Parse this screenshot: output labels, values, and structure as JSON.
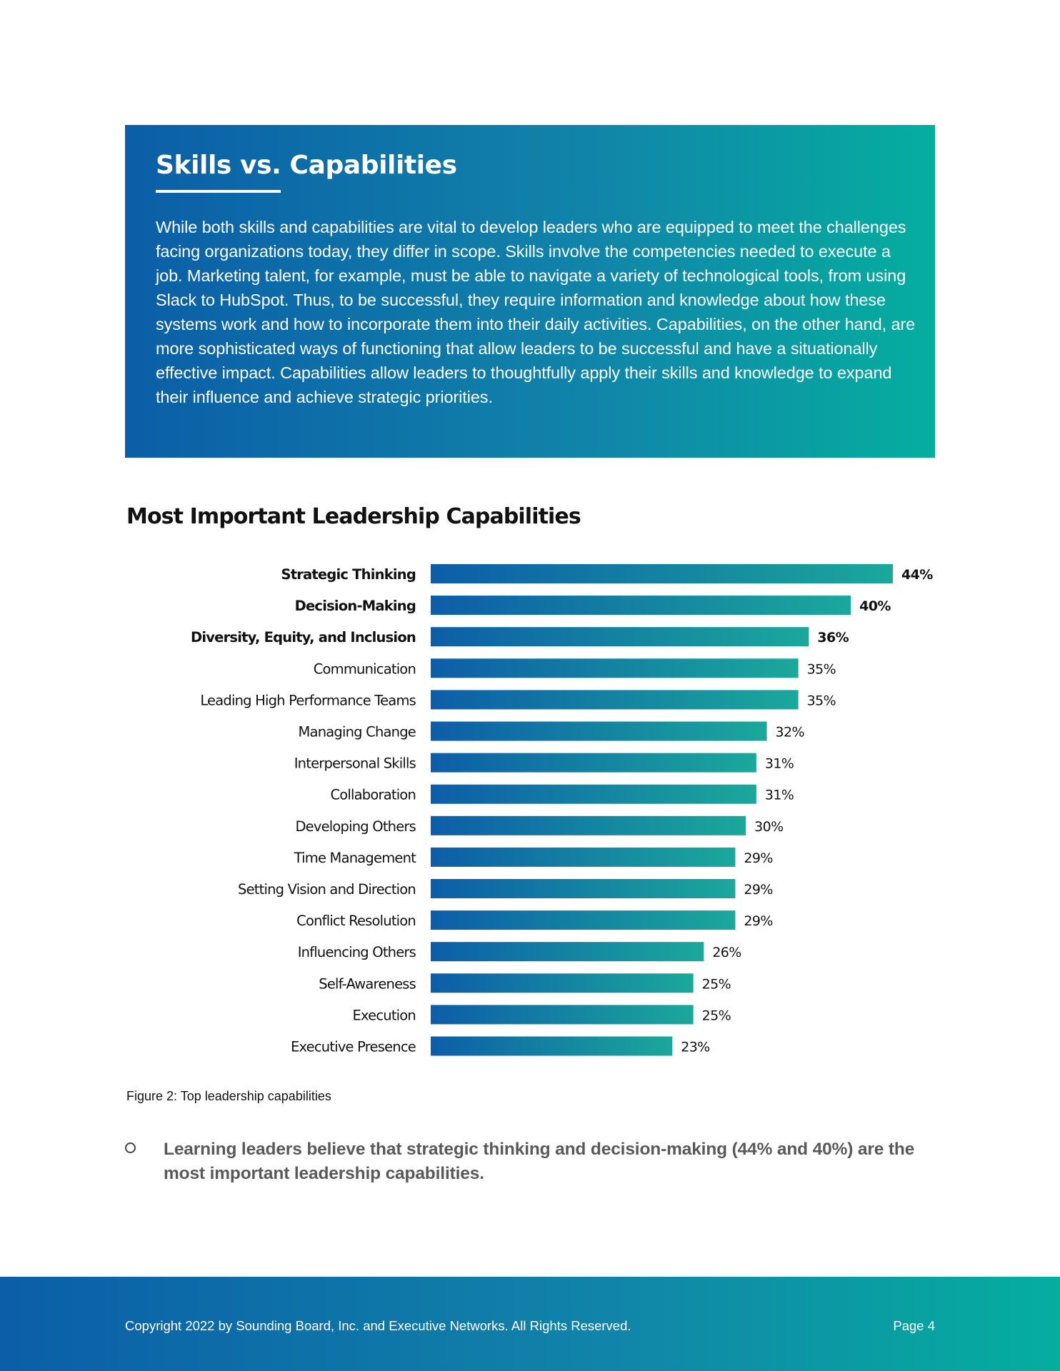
{
  "callout": {
    "title": "Skills vs. Capabilities",
    "body": "While both skills and capabilities are vital to develop leaders who are equipped to meet the challenges facing organizations today, they differ in scope. Skills involve the competencies needed to execute a job. Marketing talent, for example, must be able to navigate a variety of technological tools, from using Slack to HubSpot. Thus, to be successful, they require information and knowledge about how these systems work and how to incorporate them into their daily activities. Capabilities, on the other hand, are more sophisticated ways of functioning that allow leaders to be successful and have a situationally effective impact. Capabilities allow leaders to thoughtfully apply their skills and knowledge to expand their influence and achieve strategic priorities."
  },
  "chart_data": {
    "type": "bar",
    "orientation": "horizontal",
    "title": "Most Important Leadership Capabilities",
    "categories": [
      "Strategic Thinking",
      "Decision-Making",
      "Diversity, Equity, and Inclusion",
      "Communication",
      "Leading High Performance Teams",
      "Managing Change",
      "Interpersonal Skills",
      "Collaboration",
      "Developing Others",
      "Time Management",
      "Setting Vision and Direction",
      "Conflict Resolution",
      "Influencing Others",
      "Self-Awareness",
      "Execution",
      "Executive Presence"
    ],
    "values": [
      44,
      40,
      36,
      35,
      35,
      32,
      31,
      31,
      30,
      29,
      29,
      29,
      26,
      25,
      25,
      23
    ],
    "value_labels": [
      "44%",
      "40%",
      "36%",
      "35%",
      "35%",
      "32%",
      "31%",
      "31%",
      "30%",
      "29%",
      "29%",
      "29%",
      "26%",
      "25%",
      "25%",
      "23%"
    ],
    "bold_categories": [
      "Strategic Thinking",
      "Decision-Making",
      "Diversity, Equity, and Inclusion"
    ],
    "xlabel": "",
    "ylabel": "",
    "xlim": [
      0,
      44
    ],
    "grid": false,
    "legend": "none",
    "colors": {
      "bar_start": "#0d5da8",
      "bar_end": "#1ba89b",
      "label": "#111111"
    }
  },
  "figure_caption": "Figure 2: Top leadership capabilities",
  "bullet": {
    "text": "Learning leaders believe that strategic thinking and decision-making (44% and 40%) are the most important leadership capabilities."
  },
  "footer": {
    "copyright": "Copyright 2022 by Sounding Board, Inc. and Executive Networks. All Rights Reserved.",
    "page": "Page 4"
  },
  "colors": {
    "gradient_start": "#0b5ea7",
    "gradient_end": "#05ae9f",
    "bullet_text": "#595959"
  }
}
